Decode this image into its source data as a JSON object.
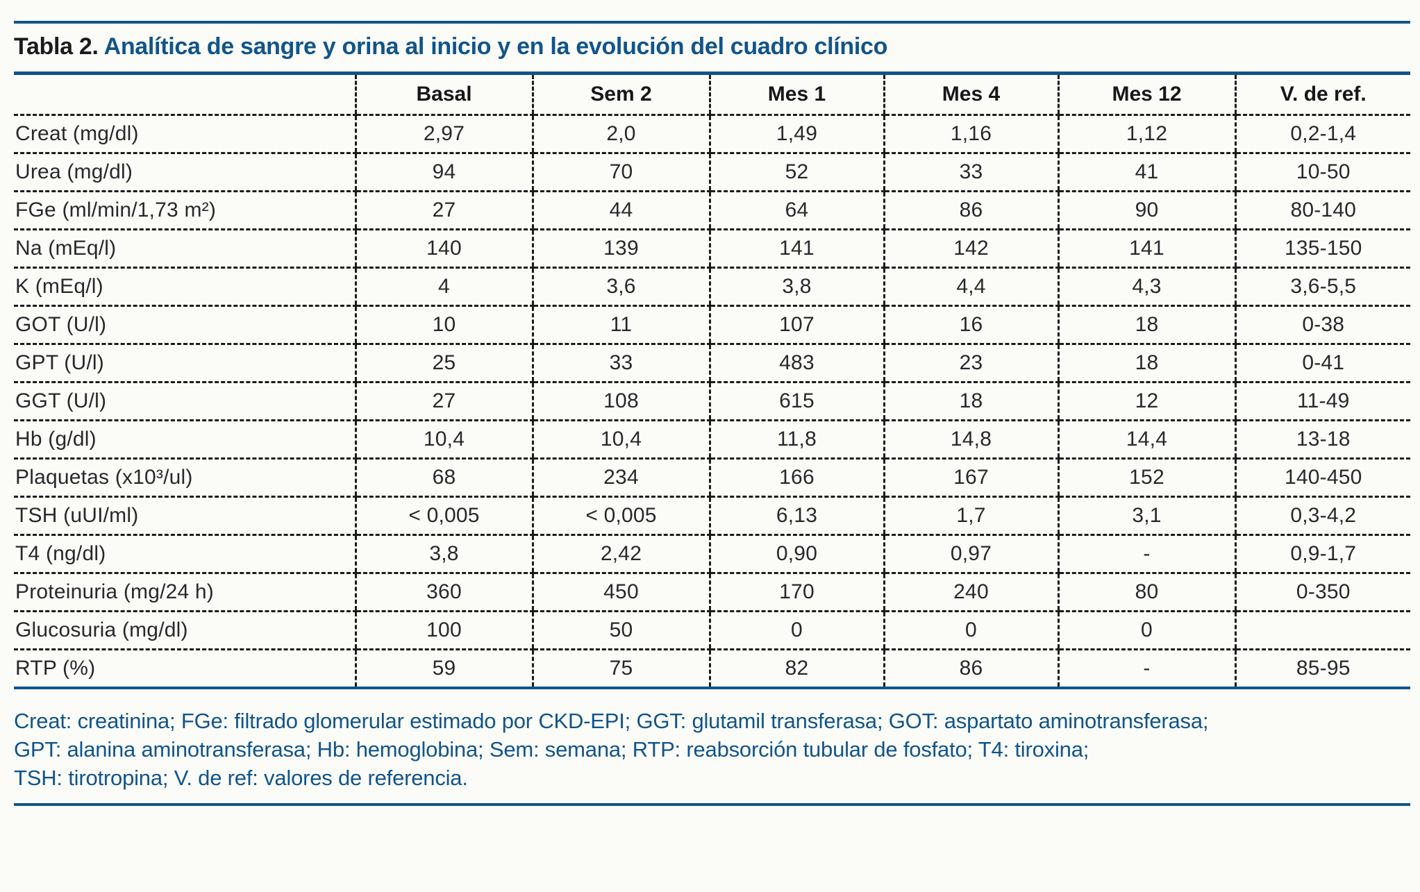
{
  "page": {
    "background": "#fbfcf8",
    "accent_blue": "#11548A",
    "text_black": "#1b1b1e"
  },
  "table": {
    "title_prefix": "Tabla 2.",
    "title": "Analítica de sangre y orina al inicio y en la evolución del cuadro clínico",
    "columns": [
      "",
      "Basal",
      "Sem 2",
      "Mes 1",
      "Mes 4",
      "Mes 12",
      "V. de ref."
    ],
    "rows": [
      {
        "label": "Creat (mg/dl)",
        "values": [
          "2,97",
          "2,0",
          "1,49",
          "1,16",
          "1,12",
          "0,2-1,4"
        ]
      },
      {
        "label": "Urea (mg/dl)",
        "values": [
          "94",
          "70",
          "52",
          "33",
          "41",
          "10-50"
        ]
      },
      {
        "label": "FGe (ml/min/1,73 m²)",
        "values": [
          "27",
          "44",
          "64",
          "86",
          "90",
          "80-140"
        ]
      },
      {
        "label": "Na (mEq/l)",
        "values": [
          "140",
          "139",
          "141",
          "142",
          "141",
          "135-150"
        ]
      },
      {
        "label": "K (mEq/l)",
        "values": [
          "4",
          "3,6",
          "3,8",
          "4,4",
          "4,3",
          "3,6-5,5"
        ]
      },
      {
        "label": "GOT (U/l)",
        "values": [
          "10",
          "11",
          "107",
          "16",
          "18",
          "0-38"
        ]
      },
      {
        "label": "GPT (U/l)",
        "values": [
          "25",
          "33",
          "483",
          "23",
          "18",
          "0-41"
        ]
      },
      {
        "label": "GGT (U/l)",
        "values": [
          "27",
          "108",
          "615",
          "18",
          "12",
          "11-49"
        ]
      },
      {
        "label": "Hb (g/dl)",
        "values": [
          "10,4",
          "10,4",
          "11,8",
          "14,8",
          "14,4",
          "13-18"
        ]
      },
      {
        "label": "Plaquetas (x10³/ul)",
        "values": [
          "68",
          "234",
          "166",
          "167",
          "152",
          "140-450"
        ]
      },
      {
        "label": "TSH (uUI/ml)",
        "values": [
          "< 0,005",
          "< 0,005",
          "6,13",
          "1,7",
          "3,1",
          "0,3-4,2"
        ]
      },
      {
        "label": "T4 (ng/dl)",
        "values": [
          "3,8",
          "2,42",
          "0,90",
          "0,97",
          "-",
          "0,9-1,7"
        ]
      },
      {
        "label": "Proteinuria (mg/24 h)",
        "values": [
          "360",
          "450",
          "170",
          "240",
          "80",
          "0-350"
        ]
      },
      {
        "label": "Glucosuria (mg/dl)",
        "values": [
          "100",
          "50",
          "0",
          "0",
          "0",
          ""
        ]
      },
      {
        "label": "RTP (%)",
        "values": [
          "59",
          "75",
          "82",
          "86",
          "-",
          "85-95"
        ]
      }
    ]
  },
  "footnote": {
    "lines": [
      "Creat: creatinina; FGe: filtrado glomerular estimado por CKD-EPI; GGT: glutamil transferasa; GOT: aspartato aminotransferasa;",
      "GPT: alanina aminotransferasa; Hb: hemoglobina; Sem: semana; RTP: reabsorción tubular de fosfato; T4: tiroxina;",
      "TSH: tirotropina; V. de ref: valores de referencia."
    ]
  }
}
